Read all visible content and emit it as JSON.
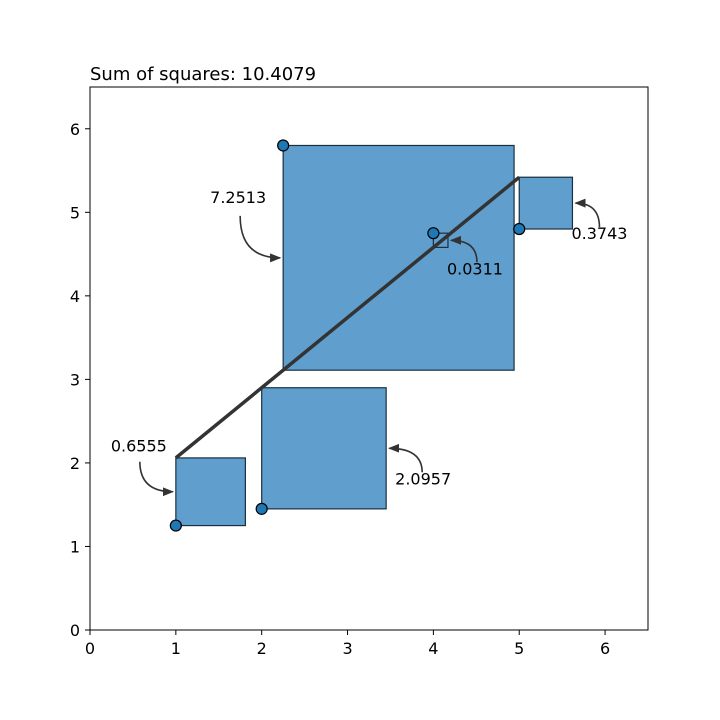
{
  "chart_data": {
    "type": "scatter",
    "title": "Sum of squares: 10.4079",
    "xlabel": "",
    "ylabel": "",
    "xlim": [
      0,
      6.5
    ],
    "ylim": [
      0,
      6.5
    ],
    "xticks": [
      "0",
      "1",
      "2",
      "3",
      "4",
      "5",
      "6"
    ],
    "yticks": [
      "0",
      "1",
      "2",
      "3",
      "4",
      "5",
      "6"
    ],
    "grid": false,
    "points": [
      {
        "x": 1,
        "y": 1.25
      },
      {
        "x": 2,
        "y": 1.45
      },
      {
        "x": 2.25,
        "y": 5.8
      },
      {
        "x": 4,
        "y": 4.75
      },
      {
        "x": 5,
        "y": 4.8
      }
    ],
    "fit_line": {
      "x": [
        1,
        5
      ],
      "y": [
        2.06,
        5.42
      ]
    },
    "squares": [
      {
        "label": "0.6555",
        "value": 0.6555
      },
      {
        "label": "2.0957",
        "value": 2.0957
      },
      {
        "label": "7.2513",
        "value": 7.2513
      },
      {
        "label": "0.0311",
        "value": 0.0311
      },
      {
        "label": "0.3743",
        "value": 0.3743
      }
    ],
    "colors": {
      "square_fill": "#5f9ecd",
      "point_fill": "#1f77b4",
      "line": "#333333",
      "edge": "#000000"
    }
  }
}
